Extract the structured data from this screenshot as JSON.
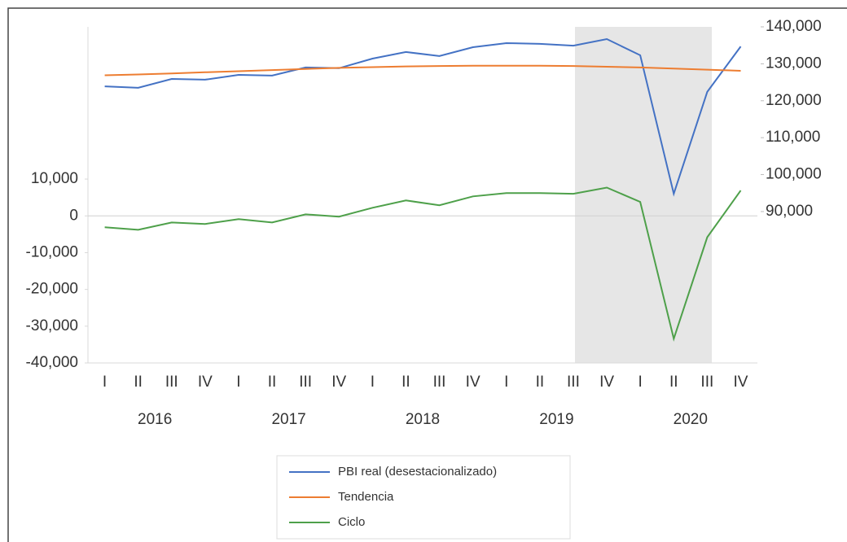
{
  "chart_data": {
    "type": "line",
    "categories": [
      "I",
      "II",
      "III",
      "IV",
      "I",
      "II",
      "III",
      "IV",
      "I",
      "II",
      "III",
      "IV",
      "I",
      "II",
      "III",
      "IV",
      "I",
      "II",
      "III",
      "IV"
    ],
    "years": [
      "2016",
      "2017",
      "2018",
      "2019",
      "2020"
    ],
    "series": [
      {
        "name": "PBI real (desestacionalizado)",
        "color": "#4472c4",
        "axis": "y2",
        "values": [
          123900,
          123500,
          125900,
          125700,
          127000,
          126800,
          129000,
          128800,
          131400,
          133200,
          132100,
          134500,
          135600,
          135400,
          134900,
          136700,
          132300,
          94800,
          122400,
          134700
        ]
      },
      {
        "name": "Tendencia",
        "color": "#ed7d31",
        "axis": "y2",
        "values": [
          126900,
          127100,
          127400,
          127700,
          128000,
          128300,
          128600,
          128900,
          129100,
          129300,
          129400,
          129500,
          129500,
          129500,
          129400,
          129200,
          129000,
          128700,
          128400,
          128100
        ]
      },
      {
        "name": "Ciclo",
        "color": "#4ea04a",
        "axis": "y",
        "values": [
          -3100,
          -3800,
          -1800,
          -2200,
          -900,
          -1800,
          400,
          -200,
          2200,
          4200,
          2900,
          5300,
          6200,
          6200,
          6000,
          7700,
          3800,
          -33400,
          -5800,
          6900
        ]
      }
    ],
    "ylim": [
      -40000,
      51400
    ],
    "yticks": [
      {
        "value": -40000,
        "label": "-40,000"
      },
      {
        "value": -30000,
        "label": "-30,000"
      },
      {
        "value": -20000,
        "label": "-20,000"
      },
      {
        "value": -10000,
        "label": "-10,000"
      },
      0,
      {
        "value": 10000,
        "label": "10,000"
      }
    ],
    "y2lim": [
      49000,
      140000
    ],
    "y2ticks": [
      {
        "value": 90000,
        "label": "90,000"
      },
      {
        "value": 100000,
        "label": "100,000"
      },
      {
        "value": 110000,
        "label": "110,000"
      },
      {
        "value": 120000,
        "label": "120,000"
      },
      {
        "value": 130000,
        "label": "130,000"
      },
      {
        "value": 140000,
        "label": "140,000"
      }
    ],
    "legend": "bottom"
  }
}
